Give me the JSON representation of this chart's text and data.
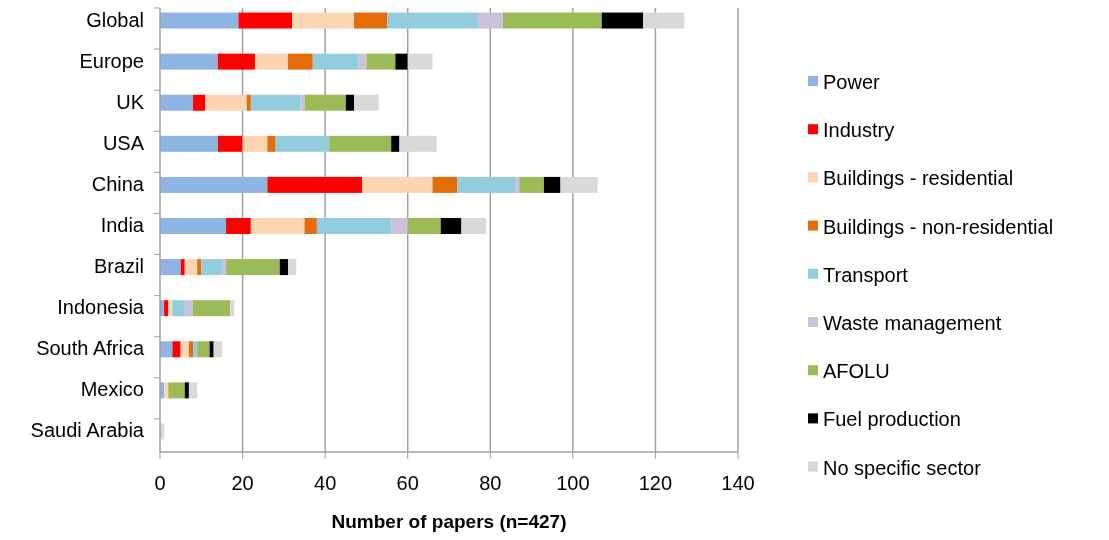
{
  "chart_data": {
    "type": "bar",
    "orientation": "horizontal",
    "stacked": true,
    "xlabel": "Number of papers (n=427)",
    "categories": [
      "Global",
      "Europe",
      "UK",
      "USA",
      "China",
      "India",
      "Brazil",
      "Indonesia",
      "South Africa",
      "Mexico",
      "Saudi Arabia"
    ],
    "series": [
      {
        "name": "Power",
        "color": "#8eb4e3",
        "values": [
          19,
          14,
          8,
          14,
          26,
          16,
          5,
          1,
          3,
          1,
          0
        ]
      },
      {
        "name": "Industry",
        "color": "#ff0000",
        "values": [
          13,
          9,
          3,
          6,
          23,
          6,
          1,
          1,
          2,
          0,
          0
        ]
      },
      {
        "name": "Buildings - residential",
        "color": "#fcd5b5",
        "values": [
          15,
          8,
          10,
          6,
          17,
          13,
          3,
          1,
          2,
          1,
          0
        ]
      },
      {
        "name": "Buildings - non-residential",
        "color": "#e46c0a",
        "values": [
          8,
          6,
          1,
          2,
          6,
          3,
          1,
          0,
          1,
          0,
          0
        ]
      },
      {
        "name": "Transport",
        "color": "#93cddd",
        "values": [
          22,
          11,
          12,
          13,
          14,
          18,
          5,
          3,
          1,
          0,
          0
        ]
      },
      {
        "name": "Waste management",
        "color": "#ccc1da",
        "values": [
          6,
          2,
          1,
          0,
          1,
          4,
          1,
          2,
          0,
          0,
          0
        ]
      },
      {
        "name": "AFOLU",
        "color": "#9bbb59",
        "values": [
          24,
          7,
          10,
          15,
          6,
          8,
          13,
          9,
          3,
          4,
          0
        ]
      },
      {
        "name": "Fuel production",
        "color": "#000000",
        "values": [
          10,
          3,
          2,
          2,
          4,
          5,
          2,
          0,
          1,
          1,
          0
        ]
      },
      {
        "name": "No specific sector",
        "color": "#d9d9d9",
        "values": [
          10,
          6,
          6,
          9,
          9,
          6,
          2,
          1,
          2,
          2,
          1
        ]
      }
    ],
    "xlim": [
      0,
      140
    ],
    "xticks": [
      0,
      20,
      40,
      60,
      80,
      100,
      120,
      140
    ],
    "grid": "x",
    "legend": "right"
  }
}
